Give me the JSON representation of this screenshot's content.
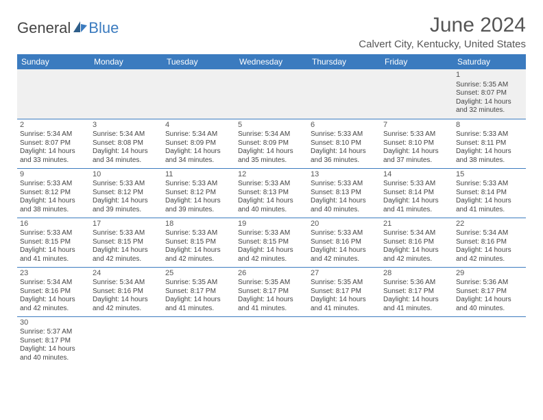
{
  "logo": {
    "text1": "General",
    "text2": "Blue"
  },
  "title": "June 2024",
  "location": "Calvert City, Kentucky, United States",
  "colors": {
    "header_bg": "#3b7bbf",
    "header_text": "#ffffff",
    "divider": "#3b7bbf",
    "body_text": "#444444",
    "title_text": "#555555",
    "logo_gray": "#444444",
    "logo_blue": "#3b7bbf",
    "first_week_bg": "#f0f0f0",
    "page_bg": "#ffffff"
  },
  "day_headers": [
    "Sunday",
    "Monday",
    "Tuesday",
    "Wednesday",
    "Thursday",
    "Friday",
    "Saturday"
  ],
  "weeks": [
    [
      null,
      null,
      null,
      null,
      null,
      null,
      {
        "d": "1",
        "sr": "5:35 AM",
        "ss": "8:07 PM",
        "dl": "14 hours and 32 minutes."
      }
    ],
    [
      {
        "d": "2",
        "sr": "5:34 AM",
        "ss": "8:07 PM",
        "dl": "14 hours and 33 minutes."
      },
      {
        "d": "3",
        "sr": "5:34 AM",
        "ss": "8:08 PM",
        "dl": "14 hours and 34 minutes."
      },
      {
        "d": "4",
        "sr": "5:34 AM",
        "ss": "8:09 PM",
        "dl": "14 hours and 34 minutes."
      },
      {
        "d": "5",
        "sr": "5:34 AM",
        "ss": "8:09 PM",
        "dl": "14 hours and 35 minutes."
      },
      {
        "d": "6",
        "sr": "5:33 AM",
        "ss": "8:10 PM",
        "dl": "14 hours and 36 minutes."
      },
      {
        "d": "7",
        "sr": "5:33 AM",
        "ss": "8:10 PM",
        "dl": "14 hours and 37 minutes."
      },
      {
        "d": "8",
        "sr": "5:33 AM",
        "ss": "8:11 PM",
        "dl": "14 hours and 38 minutes."
      }
    ],
    [
      {
        "d": "9",
        "sr": "5:33 AM",
        "ss": "8:12 PM",
        "dl": "14 hours and 38 minutes."
      },
      {
        "d": "10",
        "sr": "5:33 AM",
        "ss": "8:12 PM",
        "dl": "14 hours and 39 minutes."
      },
      {
        "d": "11",
        "sr": "5:33 AM",
        "ss": "8:12 PM",
        "dl": "14 hours and 39 minutes."
      },
      {
        "d": "12",
        "sr": "5:33 AM",
        "ss": "8:13 PM",
        "dl": "14 hours and 40 minutes."
      },
      {
        "d": "13",
        "sr": "5:33 AM",
        "ss": "8:13 PM",
        "dl": "14 hours and 40 minutes."
      },
      {
        "d": "14",
        "sr": "5:33 AM",
        "ss": "8:14 PM",
        "dl": "14 hours and 41 minutes."
      },
      {
        "d": "15",
        "sr": "5:33 AM",
        "ss": "8:14 PM",
        "dl": "14 hours and 41 minutes."
      }
    ],
    [
      {
        "d": "16",
        "sr": "5:33 AM",
        "ss": "8:15 PM",
        "dl": "14 hours and 41 minutes."
      },
      {
        "d": "17",
        "sr": "5:33 AM",
        "ss": "8:15 PM",
        "dl": "14 hours and 42 minutes."
      },
      {
        "d": "18",
        "sr": "5:33 AM",
        "ss": "8:15 PM",
        "dl": "14 hours and 42 minutes."
      },
      {
        "d": "19",
        "sr": "5:33 AM",
        "ss": "8:15 PM",
        "dl": "14 hours and 42 minutes."
      },
      {
        "d": "20",
        "sr": "5:33 AM",
        "ss": "8:16 PM",
        "dl": "14 hours and 42 minutes."
      },
      {
        "d": "21",
        "sr": "5:34 AM",
        "ss": "8:16 PM",
        "dl": "14 hours and 42 minutes."
      },
      {
        "d": "22",
        "sr": "5:34 AM",
        "ss": "8:16 PM",
        "dl": "14 hours and 42 minutes."
      }
    ],
    [
      {
        "d": "23",
        "sr": "5:34 AM",
        "ss": "8:16 PM",
        "dl": "14 hours and 42 minutes."
      },
      {
        "d": "24",
        "sr": "5:34 AM",
        "ss": "8:16 PM",
        "dl": "14 hours and 42 minutes."
      },
      {
        "d": "25",
        "sr": "5:35 AM",
        "ss": "8:17 PM",
        "dl": "14 hours and 41 minutes."
      },
      {
        "d": "26",
        "sr": "5:35 AM",
        "ss": "8:17 PM",
        "dl": "14 hours and 41 minutes."
      },
      {
        "d": "27",
        "sr": "5:35 AM",
        "ss": "8:17 PM",
        "dl": "14 hours and 41 minutes."
      },
      {
        "d": "28",
        "sr": "5:36 AM",
        "ss": "8:17 PM",
        "dl": "14 hours and 41 minutes."
      },
      {
        "d": "29",
        "sr": "5:36 AM",
        "ss": "8:17 PM",
        "dl": "14 hours and 40 minutes."
      }
    ],
    [
      {
        "d": "30",
        "sr": "5:37 AM",
        "ss": "8:17 PM",
        "dl": "14 hours and 40 minutes."
      },
      null,
      null,
      null,
      null,
      null,
      null
    ]
  ],
  "labels": {
    "sunrise": "Sunrise: ",
    "sunset": "Sunset: ",
    "daylight": "Daylight: "
  }
}
